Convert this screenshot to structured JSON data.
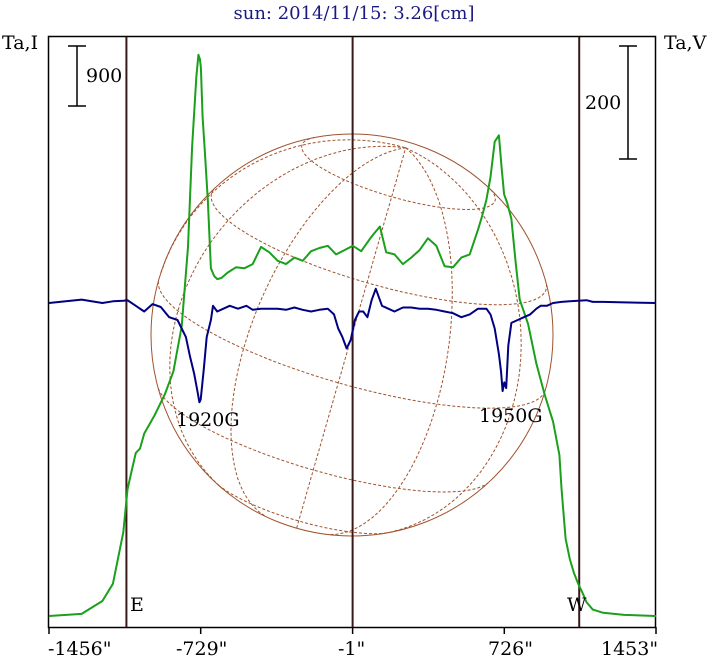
{
  "chart_data": {
    "type": "line",
    "title": "sun: 2014/11/15: 3.26[cm]",
    "left_axis_label": "Ta,I",
    "right_axis_label": "Ta,V",
    "x_ticks": [
      {
        "value": -1456,
        "label": "-1456\""
      },
      {
        "value": -729,
        "label": "-729\""
      },
      {
        "value": -1,
        "label": "-1\""
      },
      {
        "value": 726,
        "label": "726\""
      },
      {
        "value": 1453,
        "label": "1453\""
      }
    ],
    "xlim": [
      -1456,
      1453
    ],
    "limb_markers": [
      {
        "label": "E",
        "value": -1085
      },
      {
        "label": "W",
        "value": 1085
      }
    ],
    "scale_bars": [
      {
        "label": "900",
        "axis": "left"
      },
      {
        "label": "200",
        "axis": "right"
      }
    ],
    "annotations": [
      {
        "label": "1920G",
        "x": -729
      },
      {
        "label": "1950G",
        "x": 726
      }
    ],
    "colors": {
      "intensity": "#1aa01a",
      "circular_polarization": "#000080",
      "solar_disk": "#a0522d",
      "vertical_lines": "#3a1818",
      "title": "#1a1a80"
    },
    "series": [
      {
        "name": "Ta,I",
        "axis": "left",
        "color": "#1aa01a",
        "x": [
          -1456,
          -1300,
          -1200,
          -1150,
          -1100,
          -1080,
          -1060,
          -1040,
          -1020,
          -1000,
          -950,
          -900,
          -860,
          -820,
          -790,
          -770,
          -750,
          -740,
          -733,
          -728,
          -720,
          -710,
          -695,
          -680,
          -665,
          -650,
          -630,
          -600,
          -560,
          -520,
          -480,
          -440,
          -400,
          -360,
          -320,
          -280,
          -240,
          -200,
          -160,
          -120,
          -80,
          -40,
          0,
          40,
          80,
          100,
          130,
          160,
          200,
          240,
          280,
          320,
          360,
          400,
          440,
          480,
          520,
          560,
          600,
          620,
          640,
          660,
          680,
          700,
          713,
          725,
          740,
          760,
          780,
          800,
          840,
          880,
          920,
          960,
          990,
          1000,
          1020,
          1040,
          1060,
          1080,
          1100,
          1120,
          1150,
          1200,
          1300,
          1453
        ],
        "y": [
          0,
          20,
          140,
          300,
          780,
          1180,
          1350,
          1520,
          1560,
          1700,
          1870,
          2070,
          2280,
          2700,
          3440,
          4370,
          5020,
          5230,
          5190,
          5110,
          4650,
          4350,
          3880,
          3240,
          3170,
          3140,
          3150,
          3200,
          3250,
          3240,
          3280,
          3440,
          3390,
          3310,
          3280,
          3340,
          3310,
          3400,
          3430,
          3450,
          3370,
          3410,
          3450,
          3400,
          3510,
          3560,
          3630,
          3390,
          3370,
          3280,
          3340,
          3410,
          3520,
          3450,
          3260,
          3250,
          3340,
          3370,
          3600,
          3730,
          3880,
          4090,
          4420,
          4480,
          4180,
          3930,
          3850,
          3700,
          3300,
          2950,
          2720,
          2350,
          2060,
          1810,
          1500,
          1190,
          720,
          530,
          400,
          300,
          220,
          130,
          60,
          30,
          10,
          0
        ]
      },
      {
        "name": "Ta,V",
        "axis": "right",
        "color": "#000080",
        "x": [
          -1456,
          -1300,
          -1200,
          -1150,
          -1100,
          -1080,
          -1040,
          -1000,
          -960,
          -920,
          -880,
          -840,
          -800,
          -780,
          -760,
          -745,
          -735,
          -729,
          -715,
          -700,
          -680,
          -670,
          -650,
          -620,
          -590,
          -550,
          -510,
          -480,
          -440,
          -400,
          -360,
          -320,
          -280,
          -240,
          -200,
          -160,
          -120,
          -90,
          -70,
          -50,
          -30,
          -10,
          10,
          30,
          50,
          70,
          90,
          110,
          140,
          170,
          200,
          240,
          280,
          320,
          360,
          400,
          440,
          480,
          520,
          560,
          600,
          640,
          660,
          680,
          700,
          710,
          718,
          726,
          735,
          745,
          760,
          790,
          820,
          850,
          880,
          900,
          930,
          960,
          1000,
          1040,
          1080,
          1120,
          1150,
          1200,
          1300,
          1453
        ],
        "y": [
          0,
          6,
          0,
          3,
          4,
          5,
          -5,
          -15,
          -2,
          -7,
          -25,
          -30,
          -60,
          -95,
          -125,
          -155,
          -175,
          -170,
          -120,
          -60,
          -30,
          -5,
          -15,
          -10,
          -5,
          -10,
          -5,
          -12,
          -10,
          -10,
          -10,
          -12,
          -8,
          -12,
          -15,
          -12,
          -10,
          -20,
          -45,
          -60,
          -80,
          -65,
          -30,
          -15,
          -15,
          -25,
          5,
          25,
          -5,
          -10,
          -15,
          -8,
          -8,
          -10,
          -10,
          -12,
          -15,
          -18,
          -25,
          -20,
          -10,
          -10,
          -20,
          -45,
          -90,
          -120,
          -155,
          -140,
          -150,
          -75,
          -35,
          -30,
          -25,
          -20,
          -10,
          -5,
          -5,
          0,
          2,
          3,
          4,
          5,
          2,
          2,
          1,
          0
        ]
      }
    ]
  }
}
